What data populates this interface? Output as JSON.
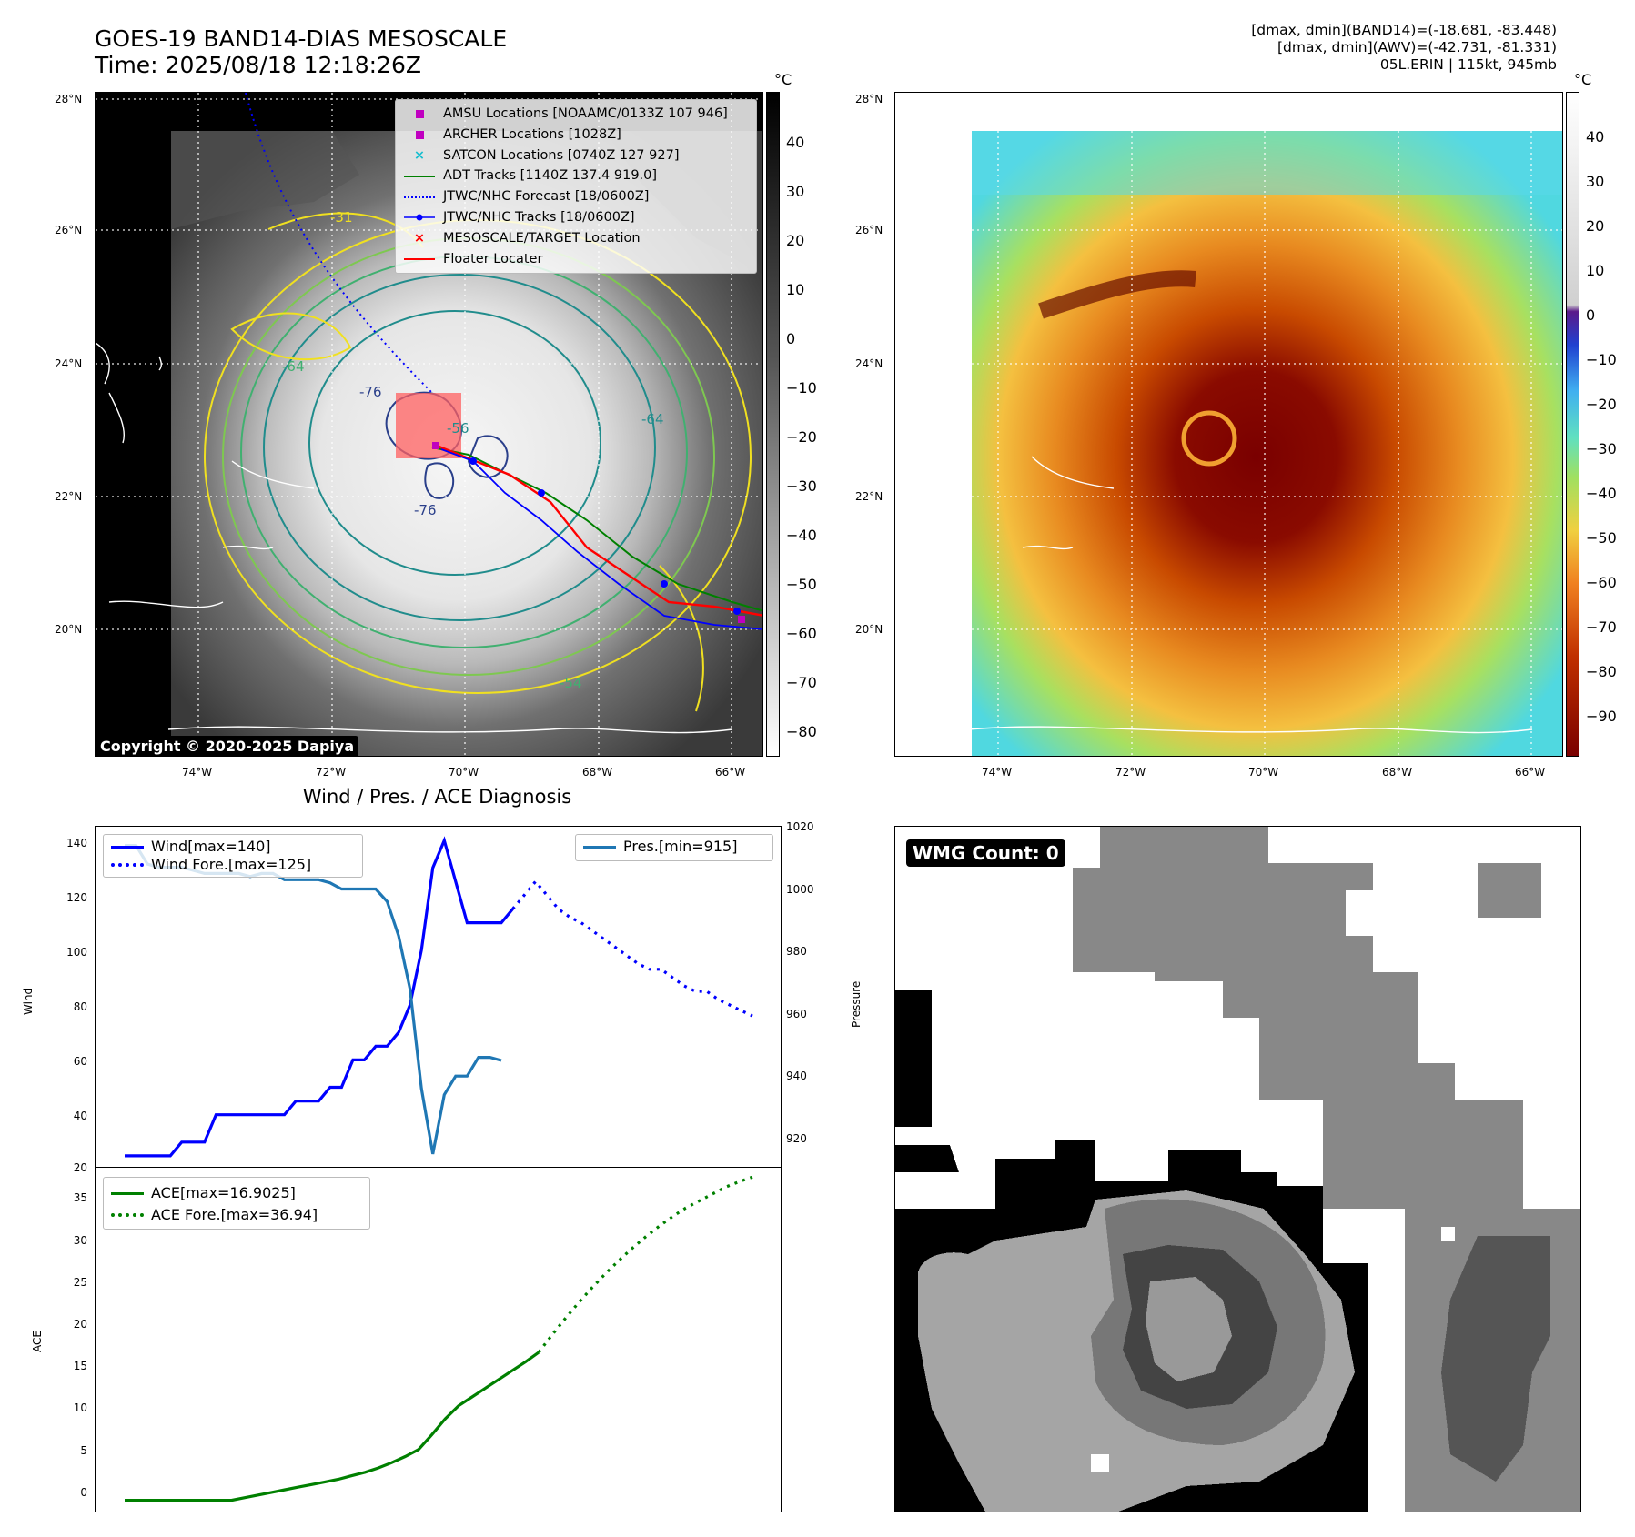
{
  "header": {
    "title_line1": "GOES-19 BAND14-DIAS MESOSCALE",
    "title_line2": "Time: 2025/08/18 12:18:26Z",
    "info_line1": "[dmax, dmin](BAND14)=(-18.681, -83.448)",
    "info_line2": "[dmax, dmin](AWV)=(-42.731, -81.331)",
    "info_line3": "05L.ERIN | 115kt, 945mb"
  },
  "map_axes": {
    "lat_labels": [
      "28°N",
      "26°N",
      "24°N",
      "22°N",
      "20°N"
    ],
    "lon_labels": [
      "74°W",
      "72°W",
      "70°W",
      "68°W",
      "66°W"
    ]
  },
  "ir_colorbar": {
    "unit": "°C",
    "ticks": [
      "40",
      "30",
      "20",
      "10",
      "0",
      "−10",
      "−20",
      "−30",
      "−40",
      "−50",
      "−60",
      "−70",
      "−80"
    ]
  },
  "awv_colorbar": {
    "unit": "°C",
    "ticks": [
      "40",
      "30",
      "20",
      "10",
      "0",
      "−10",
      "−20",
      "−30",
      "−40",
      "−50",
      "−60",
      "−70",
      "−80",
      "−90"
    ]
  },
  "map_legend": {
    "items": [
      {
        "label": "AMSU Locations [NOAAMC/0133Z 107 946]",
        "symbol": "square",
        "color": "#c000c0"
      },
      {
        "label": "ARCHER Locations [1028Z]",
        "symbol": "square",
        "color": "#c000c0"
      },
      {
        "label": "SATCON Locations [0740Z 127 927]",
        "symbol": "x",
        "color": "#17becf"
      },
      {
        "label": "ADT Tracks [1140Z 137.4 919.0]",
        "symbol": "line",
        "color": "#008000"
      },
      {
        "label": "JTWC/NHC Forecast [18/0600Z]",
        "symbol": "dotted",
        "color": "#0000ff"
      },
      {
        "label": "JTWC/NHC Tracks [18/0600Z]",
        "symbol": "line-dot",
        "color": "#0000ff"
      },
      {
        "label": "MESOSCALE/TARGET Location",
        "symbol": "x",
        "color": "#ff0000"
      },
      {
        "label": "Floater Locater",
        "symbol": "line",
        "color": "#ff0000"
      }
    ],
    "contour_labels": [
      "-31",
      "-64",
      "-76",
      "-56",
      "-54",
      "-64",
      "-76"
    ]
  },
  "copyright": "Copyright © 2020-2025 Dapiya",
  "wind_pres_chart": {
    "title": "Wind / Pres. / ACE Diagnosis",
    "ylabel_left": "Wind",
    "ylabel_right": "Pressure",
    "left_ticks": [
      "140",
      "120",
      "100",
      "80",
      "60",
      "40",
      "20"
    ],
    "right_ticks": [
      "1020",
      "1000",
      "980",
      "960",
      "940",
      "920"
    ],
    "legend_left": [
      "Wind[max=140]",
      "Wind Fore.[max=125]"
    ],
    "legend_right": [
      "Pres.[min=915]"
    ]
  },
  "ace_chart": {
    "ylabel": "ACE",
    "ticks": [
      "35",
      "30",
      "25",
      "20",
      "15",
      "10",
      "5",
      "0"
    ],
    "legend": [
      "ACE[max=16.9025]",
      "ACE Fore.[max=36.94]"
    ]
  },
  "wmg": {
    "label": "WMG Count: 0"
  },
  "colors": {
    "wind": "#0000ff",
    "pressure": "#1f77b4",
    "ace": "#008000"
  },
  "chart_data": [
    {
      "type": "line",
      "title": "Wind / Pres. / ACE Diagnosis",
      "ylabel": "Wind",
      "y2label": "Pressure",
      "ylim": [
        20,
        145
      ],
      "y2lim": [
        910,
        1020
      ],
      "series": [
        {
          "name": "Wind[max=140]",
          "axis": "left",
          "style": "solid",
          "values": [
            25,
            25,
            25,
            25,
            25,
            30,
            30,
            30,
            40,
            40,
            40,
            40,
            40,
            40,
            40,
            45,
            45,
            45,
            50,
            50,
            60,
            60,
            65,
            65,
            70,
            80,
            100,
            130,
            140,
            125,
            110,
            110,
            110,
            110,
            115
          ]
        },
        {
          "name": "Wind Fore.[max=125]",
          "axis": "left",
          "style": "dotted",
          "values": [
            115,
            120,
            125,
            120,
            115,
            112,
            110,
            107,
            104,
            101,
            98,
            95,
            93,
            93,
            90,
            87,
            85,
            85,
            82,
            80,
            78,
            76
          ]
        },
        {
          "name": "Pres.[min=915]",
          "axis": "right",
          "style": "solid",
          "values": [
            1014,
            1014,
            1008,
            1007,
            1007,
            1007,
            1006,
            1005,
            1005,
            1005,
            1005,
            1004,
            1005,
            1005,
            1003,
            1003,
            1003,
            1003,
            1002,
            1000,
            1000,
            1000,
            1000,
            996,
            985,
            968,
            936,
            915,
            934,
            940,
            940,
            946,
            946,
            945
          ]
        }
      ]
    },
    {
      "type": "line",
      "ylabel": "ACE",
      "ylim": [
        -1.5,
        38
      ],
      "series": [
        {
          "name": "ACE[max=16.9025]",
          "style": "solid",
          "values": [
            0,
            0,
            0,
            0,
            0,
            0,
            0,
            0,
            0,
            0.3,
            0.6,
            0.9,
            1.2,
            1.5,
            1.8,
            2.1,
            2.4,
            2.8,
            3.2,
            3.7,
            4.3,
            5.0,
            5.8,
            7.5,
            9.3,
            10.8,
            11.8,
            12.8,
            13.8,
            14.8,
            15.8,
            16.9
          ]
        },
        {
          "name": "ACE Fore.[max=36.94]",
          "style": "dotted",
          "values": [
            16.9,
            18.9,
            20.8,
            22.6,
            24.3,
            25.9,
            27.4,
            28.8,
            30.1,
            31.3,
            32.4,
            33.4,
            34.2,
            35.0,
            35.8,
            36.4,
            36.94
          ]
        }
      ]
    }
  ]
}
